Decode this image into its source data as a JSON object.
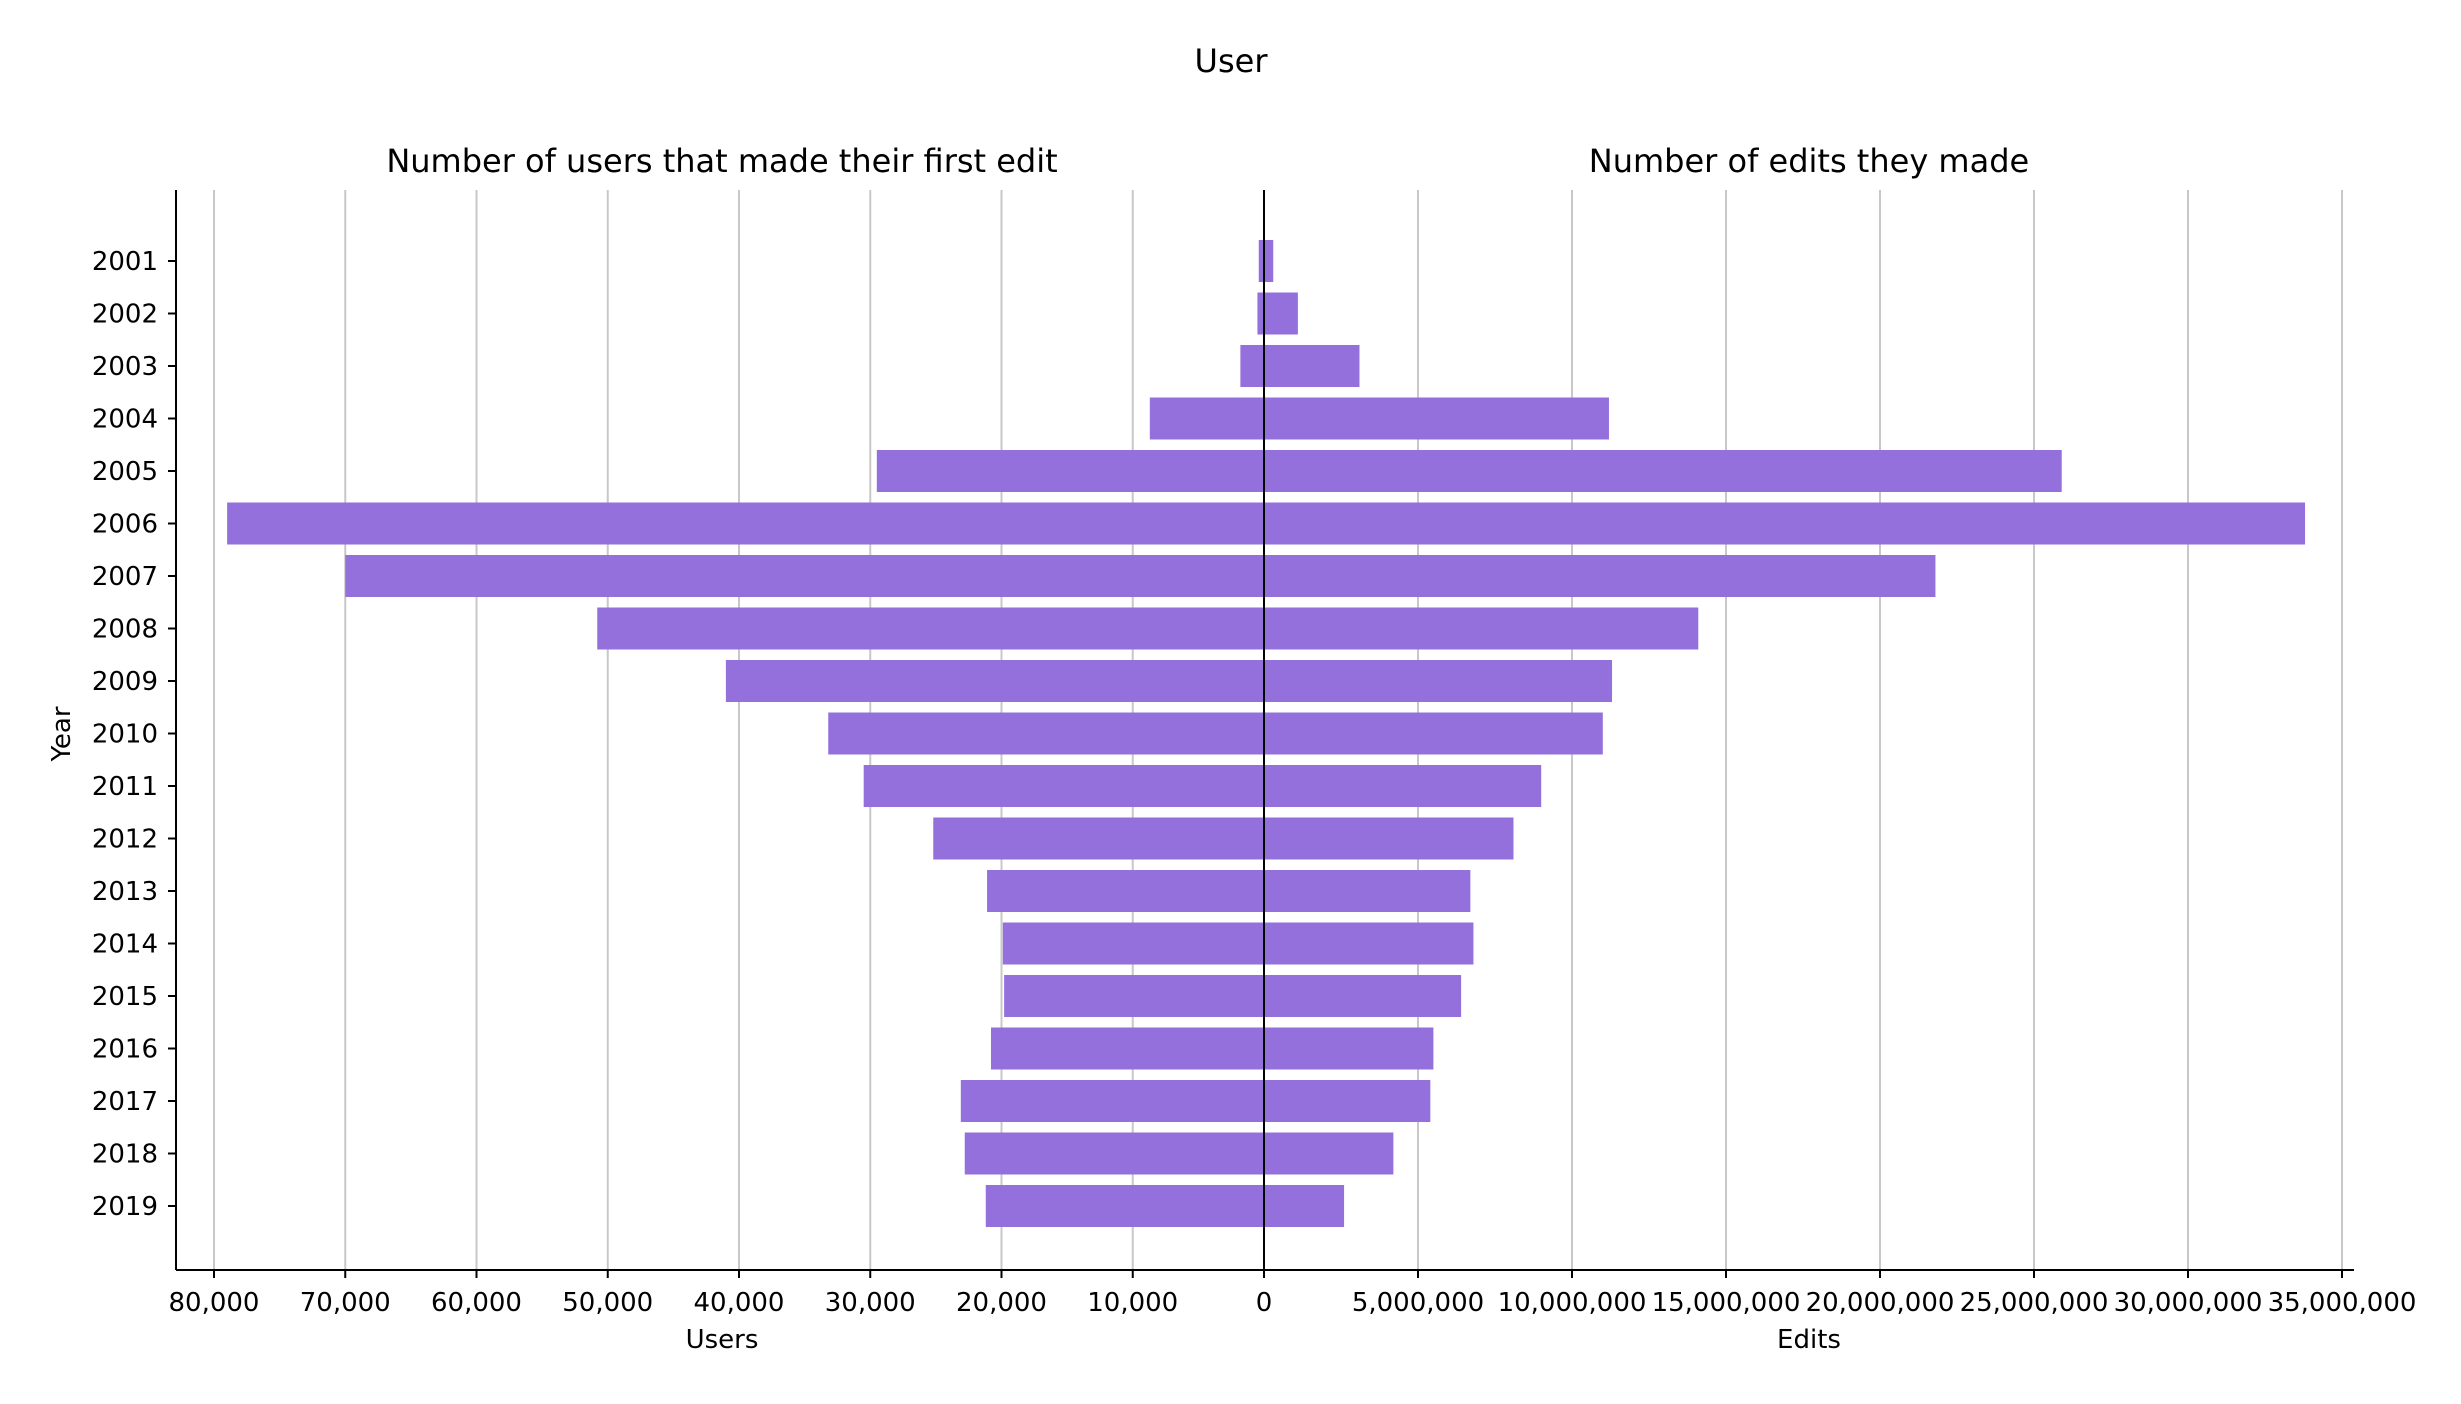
{
  "chart_data": {
    "type": "bar",
    "orientation": "horizontal",
    "layout": "back-to-back",
    "title": "User",
    "ylabel": "Year",
    "categories": [
      "2001",
      "2002",
      "2003",
      "2004",
      "2005",
      "2006",
      "2007",
      "2008",
      "2009",
      "2010",
      "2011",
      "2012",
      "2013",
      "2014",
      "2015",
      "2016",
      "2017",
      "2018",
      "2019"
    ],
    "left": {
      "subtitle": "Number of users that made their first edit",
      "xlabel": "Users",
      "xlim": [
        0,
        80000
      ],
      "ticks": [
        "0",
        "10,000",
        "20,000",
        "30,000",
        "40,000",
        "50,000",
        "60,000",
        "70,000",
        "80,000"
      ],
      "tick_values": [
        0,
        10000,
        20000,
        30000,
        40000,
        50000,
        60000,
        70000,
        80000
      ],
      "values": [
        400,
        500,
        1800,
        8700,
        29500,
        79000,
        70000,
        50800,
        41000,
        33200,
        30500,
        25200,
        21100,
        19900,
        19800,
        20800,
        23100,
        22800,
        21200
      ]
    },
    "right": {
      "subtitle": "Number of edits they made",
      "xlabel": "Edits",
      "xlim": [
        0,
        35000000
      ],
      "ticks": [
        "0",
        "5,000,000",
        "10,000,000",
        "15,000,000",
        "20,000,000",
        "25,000,000",
        "30,000,000",
        "35,000,000"
      ],
      "tick_values": [
        0,
        5000000,
        10000000,
        15000000,
        20000000,
        25000000,
        30000000,
        35000000
      ],
      "values": [
        300000,
        1100000,
        3100000,
        11200000,
        25900000,
        33800000,
        21800000,
        14100000,
        11300000,
        11000000,
        9000000,
        8100000,
        6700000,
        6800000,
        6400000,
        5500000,
        5400000,
        4200000,
        2600000
      ]
    },
    "bar_color": "#9370DB",
    "grid": "vertical",
    "legend": "none"
  }
}
